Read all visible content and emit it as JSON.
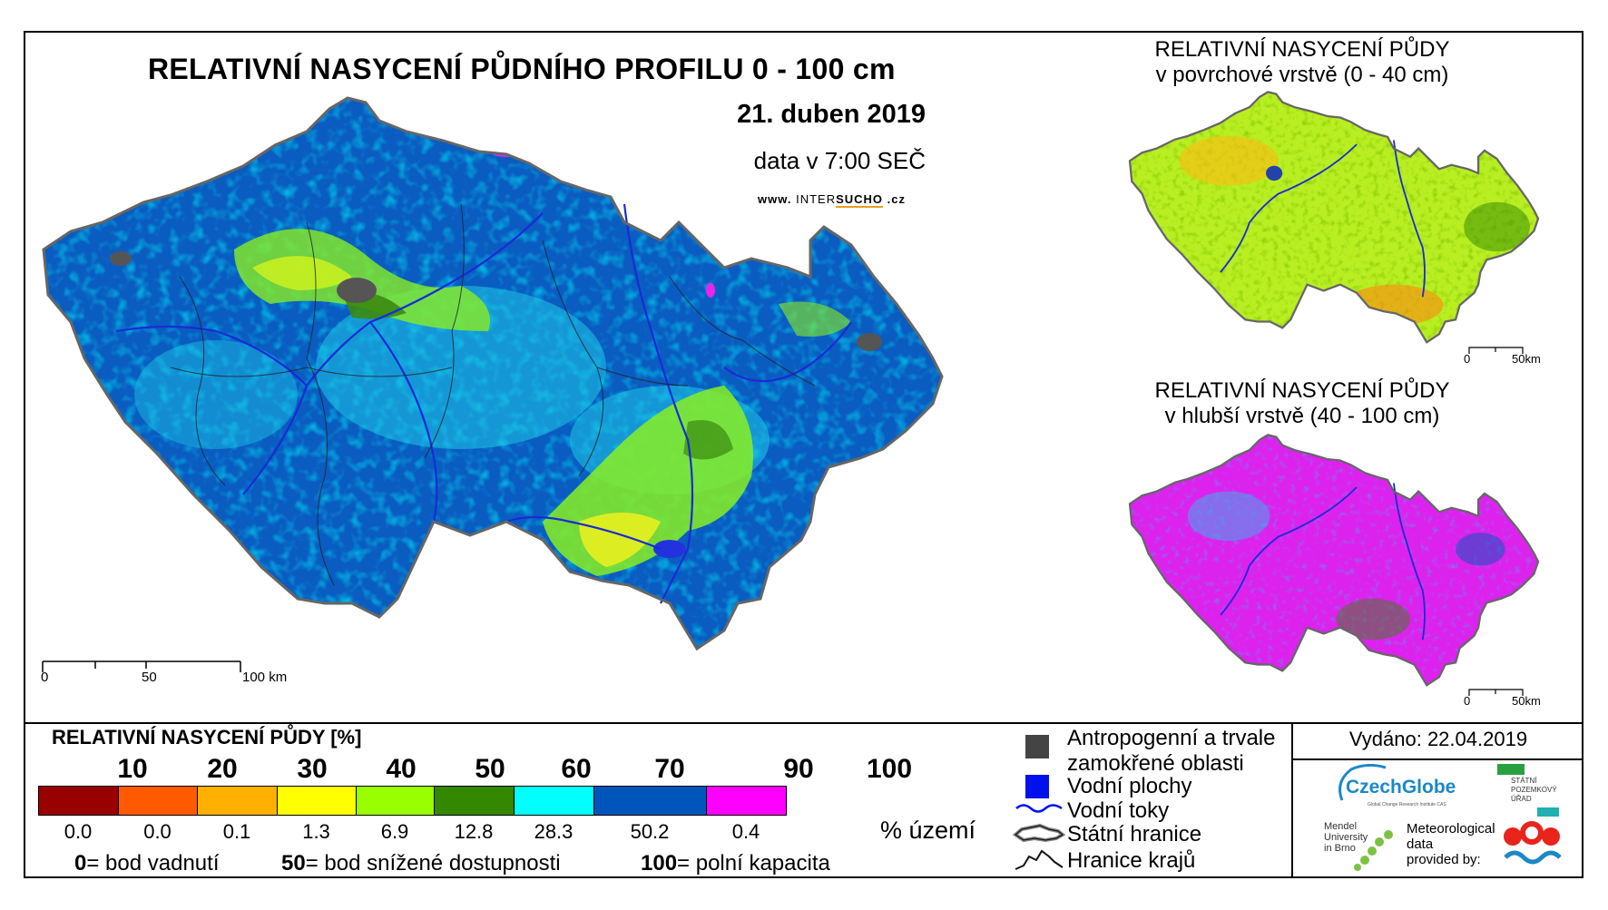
{
  "main_title": "RELATIVNÍ NASYCENÍ PŮDNÍHO PROFILU 0 - 100 cm",
  "date": "21. duben 2019",
  "time_note": "data v 7:00 SEČ",
  "website": {
    "prefix": "www.",
    "name_a": "INTER",
    "name_b": "SUCHO",
    "suffix": ".cz"
  },
  "main_scale": {
    "labels": [
      "0",
      "50",
      "100 km"
    ]
  },
  "inset_top": {
    "title_line1": "RELATIVNÍ NASYCENÍ PŮDY",
    "title_line2": "v povrchové vrstvě (0 - 40 cm)",
    "scale_labels": [
      "0",
      "50km"
    ]
  },
  "inset_bottom": {
    "title_line1": "RELATIVNÍ NASYCENÍ PŮDY",
    "title_line2": "v hlubší vrstvě (40 - 100 cm)",
    "scale_labels": [
      "0",
      "50km"
    ]
  },
  "legend": {
    "title": "RELATIVNÍ NASYCENÍ PŮDY [%]",
    "ticks": [
      "10",
      "20",
      "30",
      "40",
      "50",
      "60",
      "70",
      "90",
      "100"
    ],
    "classes": [
      {
        "color": "#990000",
        "pct": "0.0"
      },
      {
        "color": "#ff5a00",
        "pct": "0.0"
      },
      {
        "color": "#ffb000",
        "pct": "0.1"
      },
      {
        "color": "#ffff00",
        "pct": "1.3"
      },
      {
        "color": "#99ff00",
        "pct": "6.9"
      },
      {
        "color": "#338800",
        "pct": "12.8"
      },
      {
        "color": "#00ffff",
        "pct": "28.3"
      },
      {
        "color": "#0055bb",
        "pct": "50.2"
      },
      {
        "color": "#ff00ff",
        "pct": "0.4"
      }
    ],
    "pct_unit": "% území",
    "notes": [
      {
        "key": "0",
        "text": "= bod vadnutí"
      },
      {
        "key": "50",
        "text": "= bod snížené dostupnosti"
      },
      {
        "key": "100",
        "text": "= polní kapacita"
      }
    ]
  },
  "symbols": {
    "anthropogenic_line1": "Antropogenní a trvale",
    "anthropogenic_line2": "zamokřené oblasti",
    "water_bodies": "Vodní plochy",
    "rivers": "Vodní toky",
    "state_border": "Státní hranice",
    "region_border": "Hranice krajů"
  },
  "issued": "Vydáno: 22.04.2019",
  "logos": {
    "czechglobe": "CzechGlobe",
    "czechglobe_sub": "Global Change Research Institute CAS",
    "spu": [
      "STÁTNÍ",
      "POZEMKOVÝ",
      "ÚŘAD"
    ],
    "mendel": [
      "Mendel",
      "University",
      "in Brno"
    ],
    "meteo": [
      "Meteorological",
      "data",
      "provided by:"
    ]
  },
  "colors": {
    "dominant_main": "#0055bb",
    "inset_top_dominant": "#aaee22",
    "inset_bottom_dominant": "#dd22ee"
  }
}
